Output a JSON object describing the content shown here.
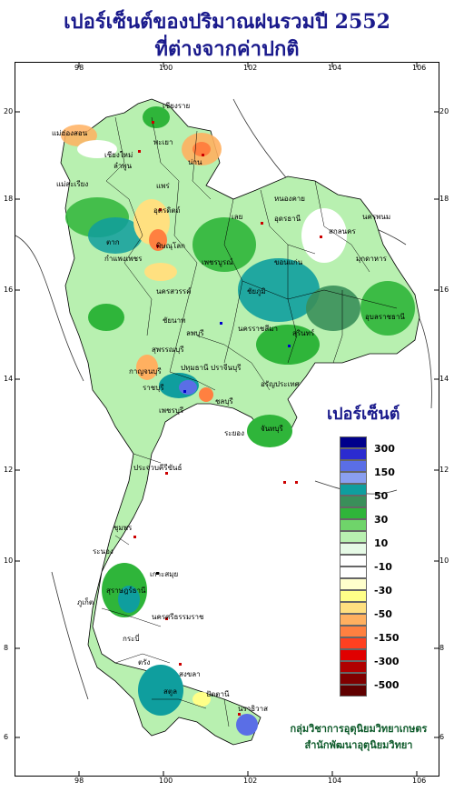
{
  "title": {
    "line1": "เปอร์เซ็นต์ของปริมาณฝนรวมปี  2552",
    "line2": "ที่ต่างจากค่าปกติ"
  },
  "axes": {
    "lon_ticks": [
      "98",
      "100",
      "102",
      "104",
      "106"
    ],
    "lat_ticks": [
      "20",
      "18",
      "16",
      "14",
      "12",
      "10",
      "8",
      "6"
    ]
  },
  "legend": {
    "title": "เปอร์เซ็นต์",
    "labels": [
      "300",
      "150",
      "50",
      "30",
      "10",
      "-10",
      "-30",
      "-50",
      "-150",
      "-300",
      "-500"
    ],
    "colors": [
      "#00008b",
      "#2b2bd0",
      "#5a6ee6",
      "#8a9ff0",
      "#0f9e9e",
      "#3a8f5a",
      "#2fb53a",
      "#6fd46a",
      "#b8f0b0",
      "#e6fae6",
      "#ffffff",
      "#ffffff",
      "#ffffcc",
      "#ffff88",
      "#ffe080",
      "#ffb060",
      "#ff8040",
      "#ff4020",
      "#e00000",
      "#b00000",
      "#800000",
      "#600000"
    ]
  },
  "provinces": [
    "เชียงราย",
    "แม่ฮ่องสอน",
    "พะเยา",
    "เชียงใหม่",
    "ลำพูน",
    "น่าน",
    "แม่สะเรียง",
    "แพร่",
    "อุตรดิตถ์",
    "หนองคาย",
    "นครพนม",
    "เลย",
    "อุดรธานี",
    "สกลนคร",
    "ตาก",
    "พิษณุโลก",
    "มุกดาหาร",
    "กำแพงเพชร",
    "เพชรบูรณ์",
    "ขอนแก่น",
    "นครสวรรค์",
    "ชัยภูมิ",
    "อุบลราชธานี",
    "ชัยนาท",
    "ลพบุรี",
    "นครราชสีมา",
    "สุรินทร์",
    "สุพรรณบุรี",
    "กาญจนบุรี",
    "ปทุมธานี",
    "ปราจีนบุรี",
    "ราชบุรี",
    "อรัญประเทศ",
    "ชลบุรี",
    "ระยอง",
    "จันทบุรี",
    "เพชรบุรี",
    "ประจวบคีรีขันธ์",
    "ชุมพร",
    "ระนอง",
    "เกาะสมุย",
    "สุราษฎร์ธานี",
    "ภูเก็ต",
    "นครศรีธรรมราช",
    "กระบี่",
    "ตรัง",
    "สงขลา",
    "สตูล",
    "ปัตตานี",
    "นราธิวาส"
  ],
  "credit": {
    "line1": "กลุ่มวิชาการอุตุนิยมวิทยาเกษตร",
    "line2": "สำนักพัฒนาอุตุนิยมวิทยา"
  }
}
